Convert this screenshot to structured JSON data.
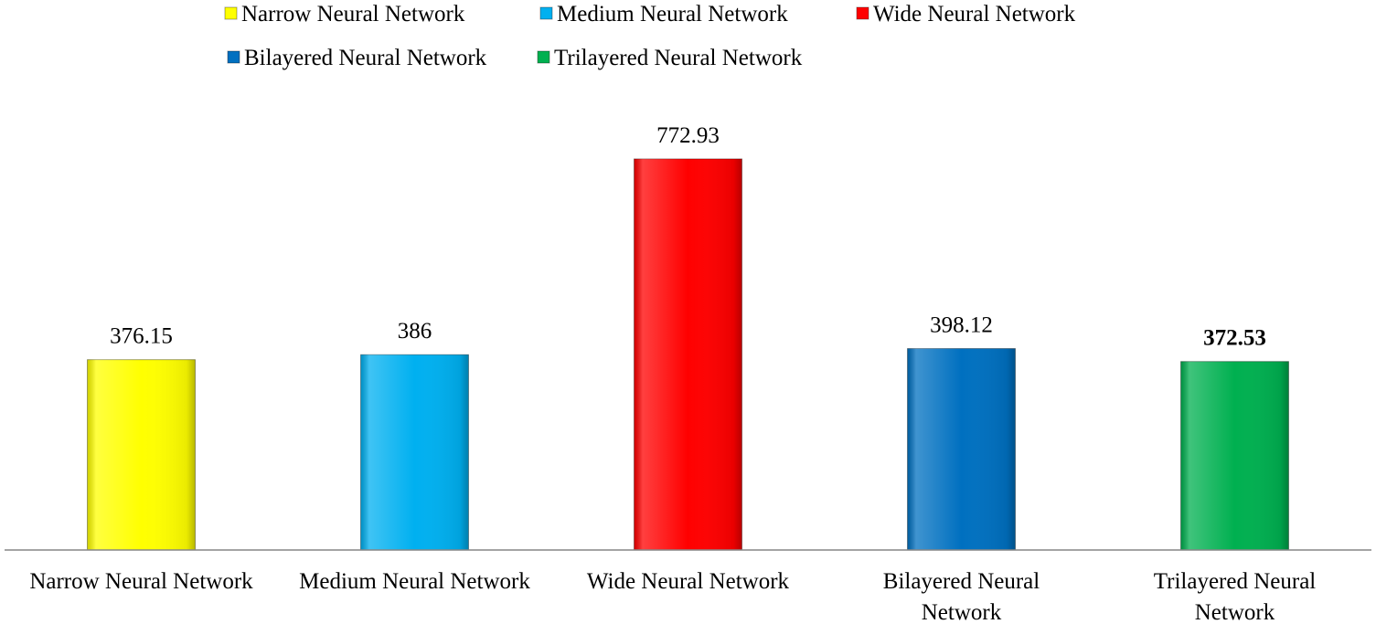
{
  "chart_data": {
    "type": "bar",
    "categories": [
      [
        "Narrow Neural Network"
      ],
      [
        "Medium Neural Network"
      ],
      [
        "Wide Neural Network"
      ],
      [
        "Bilayered Neural",
        "Network"
      ],
      [
        "Trilayered Neural",
        "Network"
      ]
    ],
    "values": [
      376.15,
      386,
      772.93,
      398.12,
      372.53
    ],
    "value_labels": [
      "376.15",
      "386",
      "772.93",
      "398.12",
      "372.53"
    ],
    "bold_value_index": 4,
    "colors": [
      "#ffff00",
      "#00b0f0",
      "#ff0000",
      "#0070c0",
      "#00b050"
    ],
    "legend": {
      "placement": "top",
      "entries": [
        "Narrow Neural Network",
        "Medium Neural Network",
        "Wide Neural Network",
        "Bilayered Neural Network",
        "Trilayered Neural Network"
      ]
    },
    "ylim": [
      0,
      780
    ],
    "grid": false,
    "title": "",
    "xlabel": "",
    "ylabel": ""
  }
}
